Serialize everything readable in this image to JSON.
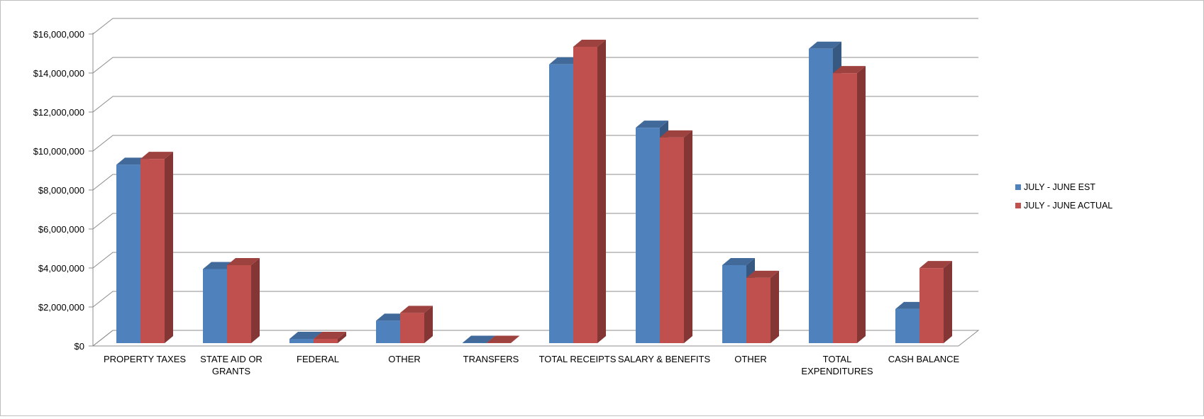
{
  "chart_data": {
    "type": "bar",
    "style": "3d-clustered-column",
    "categories": [
      [
        "PROPERTY TAXES"
      ],
      [
        "STATE AID OR",
        "GRANTS"
      ],
      [
        "FEDERAL"
      ],
      [
        "OTHER"
      ],
      [
        "TRANSFERS"
      ],
      [
        "TOTAL RECEIPTS"
      ],
      [
        "SALARY & BENEFITS"
      ],
      [
        "OTHER"
      ],
      [
        "TOTAL",
        "EXPENDITURES"
      ],
      [
        "CASH BALANCE"
      ]
    ],
    "series": [
      {
        "name": "JULY - JUNE EST",
        "color": "#4f81bd",
        "values": [
          9150000,
          3800000,
          220000,
          1150000,
          20000,
          14300000,
          11050000,
          4000000,
          15100000,
          1750000
        ]
      },
      {
        "name": "JULY - JUNE ACTUAL",
        "color": "#c0504d",
        "values": [
          9450000,
          4000000,
          220000,
          1550000,
          20000,
          15200000,
          10550000,
          3350000,
          13850000,
          3850000
        ]
      }
    ],
    "y_ticks": [
      "$0",
      "$2,000,000",
      "$4,000,000",
      "$6,000,000",
      "$8,000,000",
      "$10,000,000",
      "$12,000,000",
      "$14,000,000",
      "$16,000,000"
    ],
    "ylim": [
      0,
      16000000
    ],
    "grid": true,
    "legend_position": "right"
  }
}
